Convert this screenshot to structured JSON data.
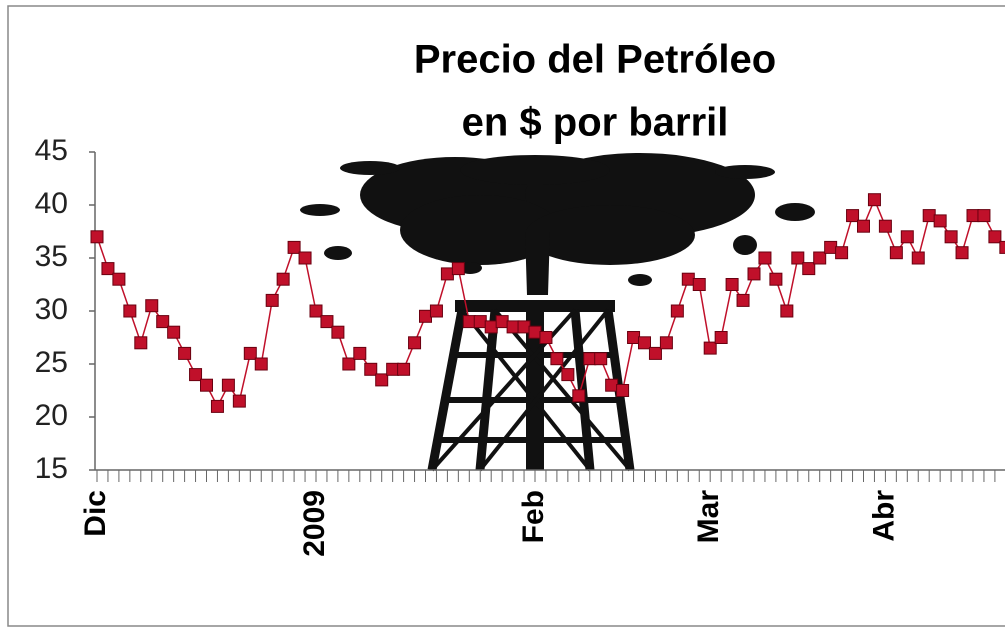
{
  "chart_data": {
    "type": "line",
    "title": "Precio del Petróleo",
    "subtitle": "en $ por barril",
    "categories": [
      "Dic",
      null,
      null,
      null,
      null,
      null,
      null,
      null,
      null,
      null,
      null,
      null,
      null,
      null,
      null,
      null,
      null,
      null,
      null,
      null,
      "2009",
      null,
      null,
      null,
      null,
      null,
      null,
      null,
      null,
      null,
      null,
      null,
      null,
      null,
      null,
      null,
      null,
      null,
      null,
      null,
      "Feb",
      null,
      null,
      null,
      null,
      null,
      null,
      null,
      null,
      null,
      null,
      null,
      null,
      null,
      null,
      null,
      "Mar",
      null,
      null,
      null,
      null,
      null,
      null,
      null,
      null,
      null,
      null,
      null,
      null,
      null,
      null,
      null,
      "Abr",
      null,
      null,
      null,
      null,
      null,
      null,
      null,
      null,
      null,
      null,
      null
    ],
    "values": [
      37,
      34,
      33,
      30,
      27,
      30.5,
      29,
      28,
      26,
      24,
      23,
      21,
      23,
      21.5,
      26,
      25,
      31,
      33,
      36,
      35,
      30,
      29,
      28,
      25,
      26,
      24.5,
      23.5,
      24.5,
      24.5,
      27,
      29.5,
      30,
      33.5,
      34,
      29,
      29,
      28.5,
      29,
      28.5,
      28.5,
      28,
      27.5,
      25.5,
      24,
      22,
      25.5,
      25.5,
      23,
      22.5,
      27.5,
      27,
      26,
      27,
      30,
      33,
      32.5,
      26.5,
      27.5,
      32.5,
      31,
      33.5,
      35,
      33,
      30,
      35,
      34,
      35,
      36,
      35.5,
      39,
      38,
      40.5,
      38,
      35.5,
      37,
      35,
      39,
      38.5,
      37,
      35.5,
      39,
      39,
      37,
      36
    ],
    "color": "#c0102a",
    "ylim": [
      15,
      45
    ],
    "yticks": [
      15,
      20,
      25,
      30,
      35,
      40,
      45
    ]
  }
}
